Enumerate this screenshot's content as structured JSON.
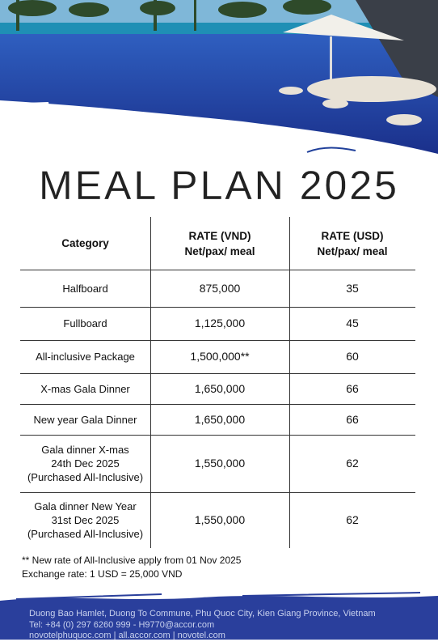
{
  "header": {
    "title": "MEAL PLAN 2025"
  },
  "table": {
    "columns": [
      [
        "Category"
      ],
      [
        "RATE (VND)",
        "Net/pax/ meal"
      ],
      [
        "RATE (USD)",
        "Net/pax/ meal"
      ]
    ],
    "rows": [
      [
        [
          "Halfboard"
        ],
        [
          "875,000"
        ],
        [
          "35"
        ]
      ],
      [
        [
          "Fullboard"
        ],
        [
          "1,125,000"
        ],
        [
          "45"
        ]
      ],
      [
        [
          "All-inclusive Package"
        ],
        [
          "1,500,000**"
        ],
        [
          "60"
        ]
      ],
      [
        [
          "X-mas Gala Dinner"
        ],
        [
          "1,650,000"
        ],
        [
          "66"
        ]
      ],
      [
        [
          "New year Gala Dinner"
        ],
        [
          "1,650,000"
        ],
        [
          "66"
        ]
      ],
      [
        [
          "Gala dinner X-mas",
          "24th Dec 2025",
          "(Purchased All-Inclusive)"
        ],
        [
          "1,550,000"
        ],
        [
          "62"
        ]
      ],
      [
        [
          "Gala dinner New Year",
          "31st Dec 2025",
          "(Purchased All-Inclusive)"
        ],
        [
          "1,550,000"
        ],
        [
          "62"
        ]
      ]
    ]
  },
  "notes": [
    "** New rate of All-Inclusive apply from 01 Nov 2025",
    "Exchange rate: 1 USD = 25,000 VND"
  ],
  "footer": {
    "lines": [
      "Duong Bao Hamlet, Duong To Commune, Phu Quoc City, Kien Giang Province, Vietnam",
      "Tel: +84 (0) 297 6260 999 - H9770@accor.com",
      "novotelphuquoc.com | all.accor.com | novotel.com"
    ]
  }
}
